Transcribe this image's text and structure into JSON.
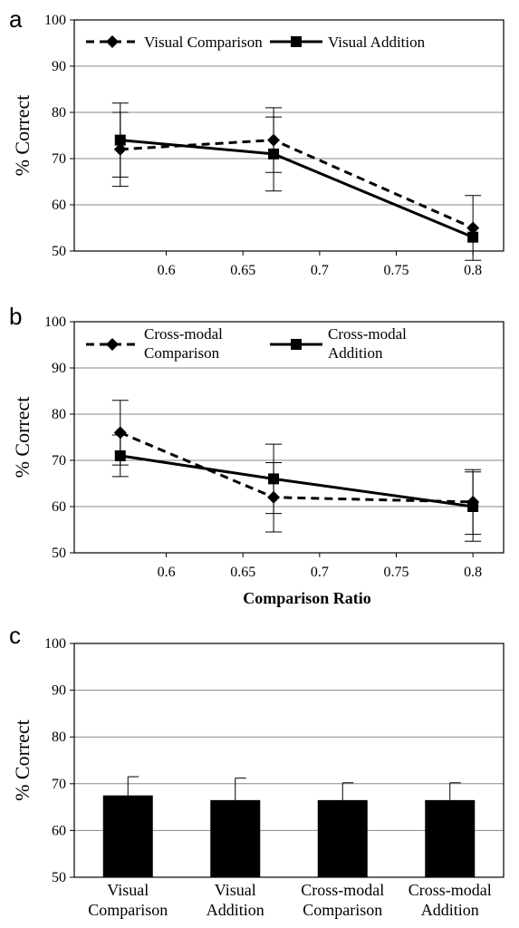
{
  "chart_data": [
    {
      "panel": "a",
      "type": "line",
      "ylabel": "% Correct",
      "xlabel": "",
      "ylim": [
        50,
        100
      ],
      "yticks": [
        50,
        60,
        70,
        80,
        90,
        100
      ],
      "xlim": [
        0.54,
        0.82
      ],
      "xticks": [
        "0.6",
        "0.65",
        "0.7",
        "0.75",
        "0.8"
      ],
      "grid": true,
      "legend_position": "top",
      "series": [
        {
          "name": "Visual  Comparison",
          "style": "dashed",
          "marker": "diamond",
          "x": [
            0.57,
            0.67,
            0.8
          ],
          "y": [
            72,
            74,
            55
          ],
          "err": [
            8,
            7,
            7
          ]
        },
        {
          "name": "Visual  Addition",
          "style": "solid",
          "marker": "square",
          "x": [
            0.57,
            0.67,
            0.8
          ],
          "y": [
            74,
            71,
            53
          ],
          "err": [
            8,
            8,
            0
          ]
        }
      ]
    },
    {
      "panel": "b",
      "type": "line",
      "ylabel": "% Correct",
      "xlabel": "Comparison Ratio",
      "ylim": [
        50,
        100
      ],
      "yticks": [
        50,
        60,
        70,
        80,
        90,
        100
      ],
      "xlim": [
        0.54,
        0.82
      ],
      "xticks": [
        "0.6",
        "0.65",
        "0.7",
        "0.75",
        "0.8"
      ],
      "grid": true,
      "legend_position": "top",
      "series": [
        {
          "name": [
            "Cross-modal",
            "Comparison"
          ],
          "style": "dashed",
          "marker": "diamond",
          "x": [
            0.57,
            0.67,
            0.8
          ],
          "y": [
            76,
            62,
            61
          ],
          "err": [
            7,
            7.5,
            7
          ]
        },
        {
          "name": [
            "Cross-modal",
            "Addition"
          ],
          "style": "solid",
          "marker": "square",
          "x": [
            0.57,
            0.67,
            0.8
          ],
          "y": [
            71,
            66,
            60
          ],
          "err": [
            4.5,
            7.5,
            7.5
          ]
        }
      ]
    },
    {
      "panel": "c",
      "type": "bar",
      "ylabel": "% Correct",
      "ylim": [
        50,
        100
      ],
      "yticks": [
        50,
        60,
        70,
        80,
        90,
        100
      ],
      "grid": true,
      "categories": [
        [
          "Visual",
          "Comparison"
        ],
        [
          "Visual",
          "Addition"
        ],
        [
          "Cross-modal",
          "Comparison"
        ],
        [
          "Cross-modal",
          "Addition"
        ]
      ],
      "values": [
        67.5,
        66.5,
        66.5,
        66.5
      ],
      "err": [
        4,
        4.7,
        3.7,
        3.7
      ]
    }
  ]
}
